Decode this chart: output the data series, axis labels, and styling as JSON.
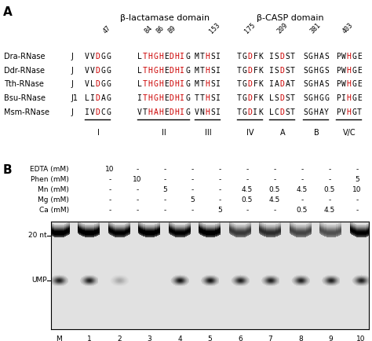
{
  "panel_A": {
    "title_beta_lactamase": "β-lactamase domain",
    "title_beta_casp": "β-CASP domain",
    "organisms": [
      "Dra-RNase",
      "Ddr-RNase",
      "Tth-RNase",
      "Bsu-RNase",
      "Msm-RNase"
    ],
    "suffixes": [
      "J",
      "J",
      "J",
      "J1",
      "J"
    ],
    "motif_groups": [
      {
        "label": "I",
        "number": "47",
        "sequences": [
          "VVDGG",
          "VVDGG",
          "VLDGG",
          "LIDAG",
          "IVDCG"
        ],
        "red_positions": [
          [
            2
          ],
          [
            2
          ],
          [
            2
          ],
          [
            2
          ],
          [
            2
          ]
        ]
      },
      {
        "label": "II",
        "number": "84 86 89",
        "sequences": [
          "LTHGHEDHIG",
          "LTHGHEDHIG",
          "LTHGHEDHIG",
          "ITHGHEDHIG",
          "VTHAHEDHIG"
        ],
        "red_positions": [
          [
            1,
            2,
            3,
            4,
            6,
            7,
            8
          ],
          [
            1,
            2,
            3,
            4,
            6,
            7,
            8
          ],
          [
            1,
            2,
            3,
            4,
            6,
            7,
            8
          ],
          [
            1,
            2,
            3,
            4,
            6,
            7,
            8
          ],
          [
            2,
            3,
            4,
            6,
            7,
            8
          ]
        ]
      },
      {
        "label": "III",
        "number": "153",
        "sequences": [
          "MTHSI",
          "MTHSI",
          "MTHSI",
          "TTHSI",
          "VNHSI"
        ],
        "red_positions": [
          [
            2
          ],
          [
            2
          ],
          [
            2
          ],
          [
            2
          ],
          [
            2
          ]
        ]
      },
      {
        "label": "IV",
        "number": "175",
        "sequences": [
          "TGDFK",
          "TGDFK",
          "TGDFK",
          "TGDFK",
          "TGDIK"
        ],
        "red_positions": [
          [
            2
          ],
          [
            2
          ],
          [
            2
          ],
          [
            2
          ],
          [
            2
          ]
        ]
      },
      {
        "label": "A",
        "number": "209",
        "sequences": [
          "ISDST",
          "ISDST",
          "IADAT",
          "LSDST",
          "LCDST"
        ],
        "red_positions": [
          [
            2
          ],
          [
            2
          ],
          [
            2
          ],
          [
            2
          ],
          [
            2
          ]
        ]
      },
      {
        "label": "B",
        "number": "381",
        "sequences": [
          "SGHAS",
          "SGHGS",
          "SGHAS",
          "SGHGG",
          "SGHAY"
        ],
        "red_positions": [
          [],
          [],
          [],
          [],
          []
        ]
      },
      {
        "label": "V/C",
        "number": "403",
        "sequences": [
          "PWHGE",
          "PWHGE",
          "PWHGE",
          "PIHGE",
          "PVHGT"
        ],
        "red_positions": [
          [
            2
          ],
          [
            2
          ],
          [
            2
          ],
          [
            2
          ],
          [
            2
          ]
        ]
      }
    ]
  },
  "panel_B": {
    "row_labels": [
      "EDTA (mM)",
      "Phen (mM)",
      "Mn (mM)",
      "Mg (mM)",
      "Ca (mM)"
    ],
    "lane_labels": [
      "M",
      "1",
      "2",
      "3",
      "4",
      "5",
      "6",
      "7",
      "8",
      "9",
      "10"
    ],
    "table_data": [
      [
        "10",
        "-",
        "-",
        "-",
        "-",
        "-",
        "-",
        "-",
        "-",
        "-"
      ],
      [
        "-",
        "10",
        "-",
        "-",
        "-",
        "-",
        "-",
        "-",
        "-",
        "5"
      ],
      [
        "-",
        "-",
        "5",
        "-",
        "-",
        "4.5",
        "0.5",
        "4.5",
        "0.5",
        "10"
      ],
      [
        "-",
        "-",
        "-",
        "5",
        "-",
        "0.5",
        "4.5",
        "-",
        "-",
        "-"
      ],
      [
        "-",
        "-",
        "-",
        "-",
        "5",
        "-",
        "-",
        "0.5",
        "4.5",
        "-"
      ]
    ],
    "band_20nt_intensity": [
      1.0,
      0.95,
      1.0,
      0.95,
      1.0,
      0.7,
      0.75,
      0.65,
      0.6,
      0.95
    ],
    "band_ump_intensity": [
      0.85,
      0.25,
      0.0,
      0.9,
      0.9,
      0.85,
      0.85,
      0.85,
      0.85,
      0.85
    ]
  }
}
